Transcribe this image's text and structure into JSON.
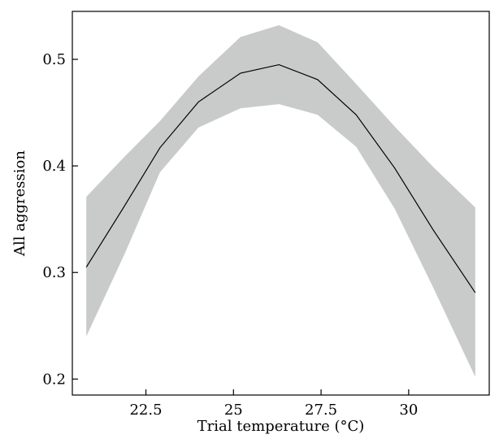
{
  "chart_data": {
    "type": "line",
    "xlabel": "Trial temperature (°C)",
    "ylabel": "All aggression",
    "xlim": [
      20.4,
      32.3
    ],
    "ylim": [
      0.185,
      0.545
    ],
    "x_ticks": [
      22.5,
      25,
      27.5,
      30
    ],
    "x_tick_labels": [
      "22.5",
      "25",
      "27.5",
      "30"
    ],
    "y_ticks": [
      0.2,
      0.3,
      0.4,
      0.5
    ],
    "y_tick_labels": [
      "0.2",
      "0.3",
      "0.4",
      "0.5"
    ],
    "grid": false,
    "series": [
      {
        "x": [
          20.8,
          21.9,
          22.9,
          24.0,
          25.2,
          26.3,
          27.4,
          28.5,
          29.6,
          30.7,
          31.9
        ],
        "values": [
          0.305,
          0.363,
          0.417,
          0.46,
          0.487,
          0.495,
          0.481,
          0.448,
          0.398,
          0.34,
          0.281
        ],
        "lower": [
          0.24,
          0.318,
          0.394,
          0.436,
          0.454,
          0.458,
          0.448,
          0.418,
          0.36,
          0.286,
          0.202
        ],
        "upper": [
          0.371,
          0.409,
          0.442,
          0.484,
          0.521,
          0.532,
          0.516,
          0.477,
          0.437,
          0.399,
          0.361
        ]
      }
    ],
    "colors": {
      "line": "#000000",
      "band": "#c9caca"
    }
  }
}
